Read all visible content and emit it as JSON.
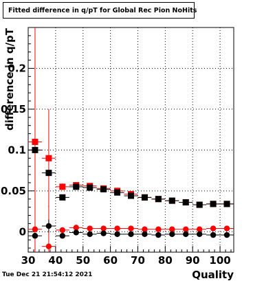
{
  "title": "Fitted difference in q/pT for Global Rec Pion NoHits",
  "timestamp": "Tue Dec 21 21:54:12 2021",
  "chart_data": {
    "type": "scatter",
    "title": "Fitted difference in q/pT for Global Rec Pion NoHits",
    "xlabel": "Quality",
    "ylabel": "difference in q/pT",
    "xlim": [
      30,
      105
    ],
    "ylim": [
      -0.025,
      0.25
    ],
    "grid": true,
    "x_ticks": [
      "30",
      "40",
      "50",
      "60",
      "70",
      "80",
      "90",
      "100"
    ],
    "y_ticks": [
      "0",
      "0.05",
      "0.1",
      "0.15",
      "0.2"
    ],
    "series": [
      {
        "marker": "square",
        "color": "#ff0000",
        "x": [
          32.5,
          37.5,
          42.5,
          47.5,
          52.5,
          57.5,
          62.5,
          67.5,
          72.5,
          77.5,
          82.5,
          87.5,
          92.5,
          97.5,
          102.5
        ],
        "y": [
          0.11,
          0.09,
          0.055,
          0.057,
          0.056,
          0.053,
          0.05,
          0.046,
          0.042,
          0.04,
          0.038,
          0.036,
          0.033,
          0.034,
          0.034
        ],
        "yerr": [
          0.3,
          0.06,
          0.004,
          0.003,
          0.003,
          0.002,
          0.002,
          0.002,
          0.002,
          0.002,
          0.002,
          0.002,
          0.002,
          0.002,
          0.002
        ]
      },
      {
        "marker": "square",
        "color": "#000000",
        "x": [
          32.5,
          37.5,
          42.5,
          47.5,
          52.5,
          57.5,
          62.5,
          67.5,
          72.5,
          77.5,
          82.5,
          87.5,
          92.5,
          97.5,
          102.5
        ],
        "y": [
          0.1,
          0.072,
          0.042,
          0.055,
          0.054,
          0.052,
          0.048,
          0.044,
          0.042,
          0.04,
          0.038,
          0.036,
          0.033,
          0.034,
          0.034
        ],
        "yerr": [
          0.004,
          0.004,
          0.003,
          0.002,
          0.002,
          0.002,
          0.002,
          0.002,
          0.002,
          0.002,
          0.002,
          0.002,
          0.002,
          0.002,
          0.002
        ]
      },
      {
        "marker": "circle",
        "color": "#ff0000",
        "x": [
          32.5,
          37.5,
          42.5,
          47.5,
          52.5,
          57.5,
          62.5,
          67.5,
          72.5,
          77.5,
          82.5,
          87.5,
          92.5,
          97.5,
          102.5
        ],
        "y": [
          0.003,
          -0.018,
          0.002,
          0.005,
          0.004,
          0.004,
          0.004,
          0.004,
          0.003,
          0.003,
          0.003,
          0.003,
          0.003,
          0.004,
          0.004
        ],
        "yerr": [
          0.004,
          0.05,
          0.002,
          0.002,
          0.002,
          0.002,
          0.002,
          0.002,
          0.002,
          0.002,
          0.002,
          0.002,
          0.002,
          0.002,
          0.002
        ]
      },
      {
        "marker": "circle",
        "color": "#000000",
        "x": [
          32.5,
          37.5,
          42.5,
          47.5,
          52.5,
          57.5,
          62.5,
          67.5,
          72.5,
          77.5,
          82.5,
          87.5,
          92.5,
          97.5,
          102.5
        ],
        "y": [
          -0.005,
          0.007,
          -0.005,
          -0.001,
          -0.003,
          -0.002,
          -0.003,
          -0.003,
          -0.003,
          -0.004,
          -0.003,
          -0.003,
          -0.003,
          -0.004,
          -0.004
        ],
        "yerr": [
          0.003,
          0.008,
          0.002,
          0.002,
          0.002,
          0.002,
          0.002,
          0.002,
          0.002,
          0.002,
          0.002,
          0.002,
          0.002,
          0.002,
          0.002
        ]
      }
    ]
  }
}
